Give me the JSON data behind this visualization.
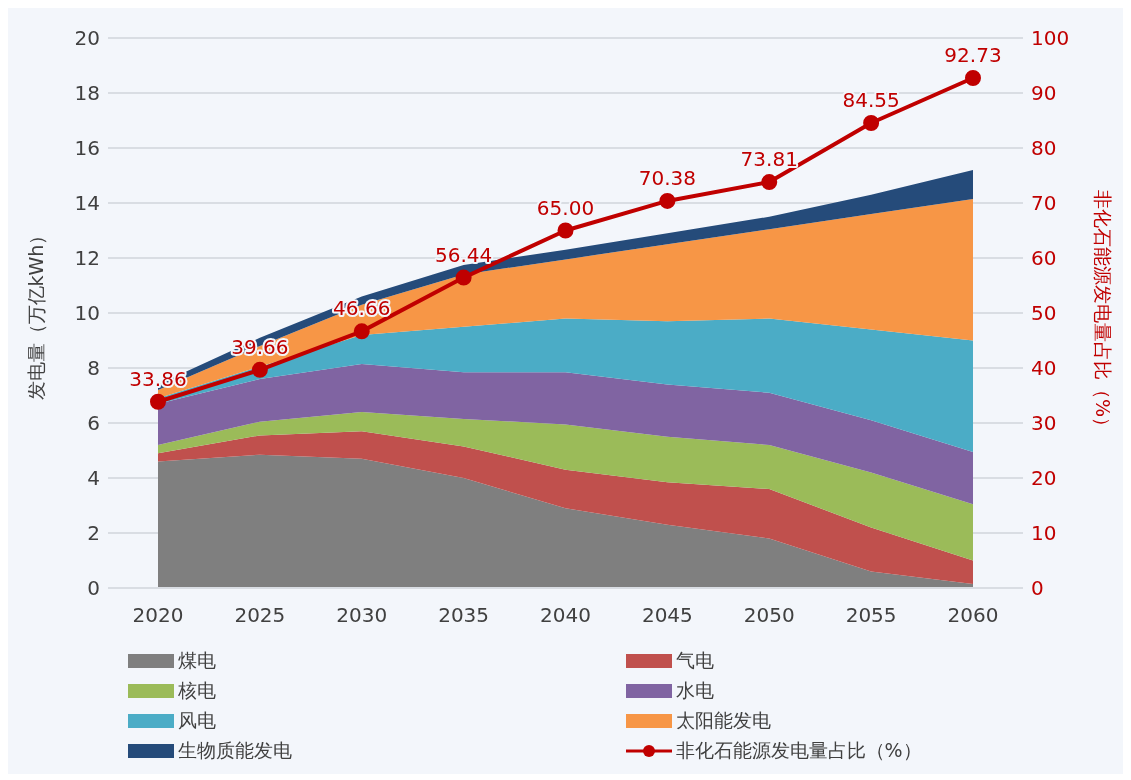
{
  "chart_data": {
    "type": "area",
    "stacked": true,
    "categories": [
      "2020",
      "2025",
      "2030",
      "2035",
      "2040",
      "2045",
      "2050",
      "2055",
      "2060"
    ],
    "ylabel": "发电量（万亿kWh）",
    "y2label": "非化石能源发电量占比（%）",
    "ylim": [
      0,
      20
    ],
    "yticks": [
      0,
      2,
      4,
      6,
      8,
      10,
      12,
      14,
      16,
      18,
      20
    ],
    "y2lim": [
      0,
      100
    ],
    "y2ticks": [
      0,
      10,
      20,
      30,
      40,
      50,
      60,
      70,
      80,
      90,
      100
    ],
    "grid": "y",
    "legend": "bottom",
    "series": [
      {
        "name": "煤电",
        "color": "#7f7f7f",
        "values": [
          4.6,
          4.85,
          4.7,
          4.0,
          2.9,
          2.3,
          1.8,
          0.6,
          0.15
        ]
      },
      {
        "name": "气电",
        "color": "#c0504d",
        "values": [
          0.3,
          0.7,
          1.0,
          1.15,
          1.4,
          1.55,
          1.8,
          1.6,
          0.85
        ]
      },
      {
        "name": "核电",
        "color": "#9bbb59",
        "values": [
          0.3,
          0.5,
          0.7,
          1.0,
          1.65,
          1.65,
          1.6,
          2.0,
          2.05
        ]
      },
      {
        "name": "水电",
        "color": "#8064a2",
        "values": [
          1.5,
          1.55,
          1.75,
          1.7,
          1.9,
          1.9,
          1.9,
          1.9,
          1.9
        ]
      },
      {
        "name": "风电",
        "color": "#4bacc6",
        "values": [
          0.2,
          0.45,
          1.05,
          1.65,
          1.95,
          2.3,
          2.7,
          3.3,
          4.05
        ]
      },
      {
        "name": "太阳能发电",
        "color": "#f79646",
        "values": [
          0.3,
          0.75,
          1.1,
          1.9,
          2.15,
          2.8,
          3.25,
          4.2,
          5.15
        ]
      },
      {
        "name": "生物质能发电",
        "color": "#254b7a",
        "values": [
          0.2,
          0.3,
          0.3,
          0.35,
          0.35,
          0.4,
          0.45,
          0.7,
          1.05
        ]
      },
      {
        "name": "非化石能源发电量占比（%）",
        "type": "line",
        "axis": "y2",
        "color": "#c00000",
        "marker": "circle",
        "values": [
          33.86,
          39.66,
          46.66,
          56.44,
          65.0,
          70.38,
          73.81,
          84.55,
          92.73
        ],
        "value_labels": [
          "33.86",
          "39.66",
          "46.66",
          "56.44",
          "65.00",
          "70.38",
          "73.81",
          "84.55",
          "92.73"
        ]
      }
    ]
  }
}
